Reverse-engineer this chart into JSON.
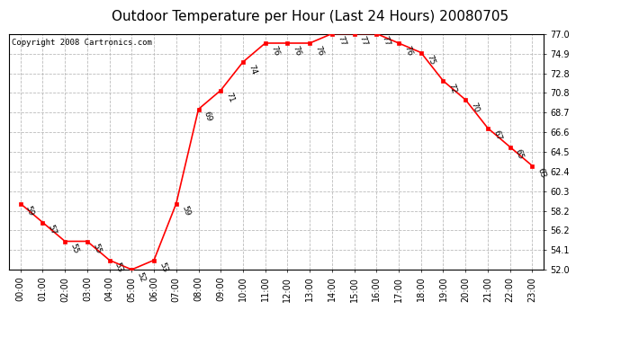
{
  "title": "Outdoor Temperature per Hour (Last 24 Hours) 20080705",
  "copyright_text": "Copyright 2008 Cartronics.com",
  "hours": [
    "00:00",
    "01:00",
    "02:00",
    "03:00",
    "04:00",
    "05:00",
    "06:00",
    "07:00",
    "08:00",
    "09:00",
    "10:00",
    "11:00",
    "12:00",
    "13:00",
    "14:00",
    "15:00",
    "16:00",
    "17:00",
    "18:00",
    "19:00",
    "20:00",
    "21:00",
    "22:00",
    "23:00"
  ],
  "temperatures": [
    59,
    57,
    55,
    55,
    53,
    52,
    53,
    59,
    69,
    71,
    74,
    76,
    76,
    76,
    77,
    77,
    77,
    76,
    75,
    72,
    70,
    67,
    65,
    63
  ],
  "ylim": [
    52.0,
    77.0
  ],
  "yticks": [
    52.0,
    54.1,
    56.2,
    58.2,
    60.3,
    62.4,
    64.5,
    66.6,
    68.7,
    70.8,
    72.8,
    74.9,
    77.0
  ],
  "line_color": "red",
  "marker_color": "red",
  "marker_style": "s",
  "marker_size": 3,
  "grid_color": "#bbbbbb",
  "bg_color": "white",
  "plot_bg_color": "white",
  "title_fontsize": 11,
  "label_fontsize": 7,
  "annotation_fontsize": 6.5,
  "copyright_fontsize": 6.5
}
